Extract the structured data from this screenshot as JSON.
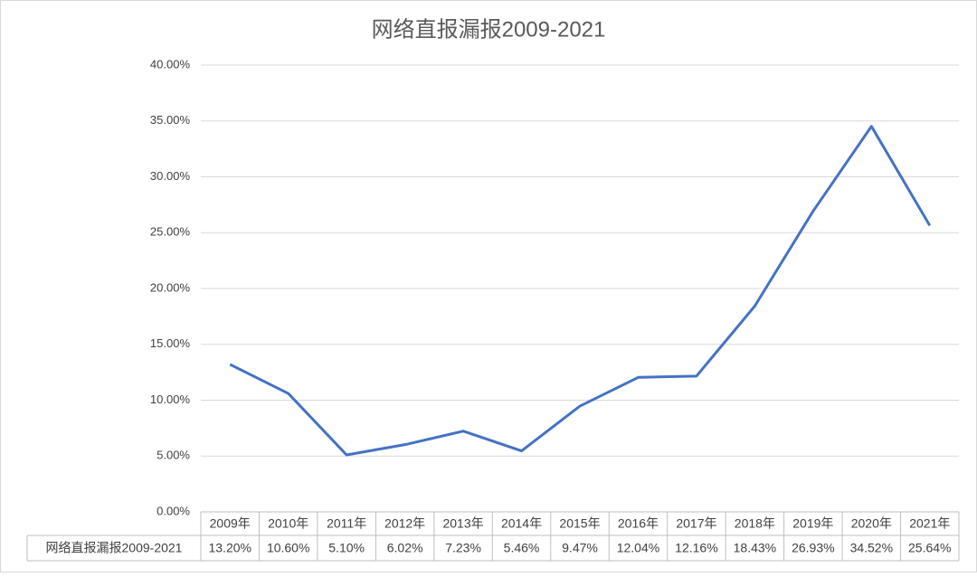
{
  "chart_data": {
    "type": "line",
    "title": "网络直报漏报2009-2021",
    "categories": [
      "2009年",
      "2010年",
      "2011年",
      "2012年",
      "2013年",
      "2014年",
      "2015年",
      "2016年",
      "2017年",
      "2018年",
      "2019年",
      "2020年",
      "2021年"
    ],
    "series": [
      {
        "name": "网络直报漏报2009-2021",
        "color": "#4472c4",
        "values": [
          13.2,
          10.6,
          5.1,
          6.02,
          7.23,
          5.46,
          9.47,
          12.04,
          12.16,
          18.43,
          26.93,
          34.52,
          25.64
        ],
        "value_labels": [
          "13.20%",
          "10.60%",
          "5.10%",
          "6.02%",
          "7.23%",
          "5.46%",
          "9.47%",
          "12.04%",
          "12.16%",
          "18.43%",
          "26.93%",
          "34.52%",
          "25.64%"
        ]
      }
    ],
    "ylim": [
      0,
      40
    ],
    "yticks": [
      {
        "value": 0,
        "label": "0.00%"
      },
      {
        "value": 5,
        "label": "5.00%"
      },
      {
        "value": 10,
        "label": "10.00%"
      },
      {
        "value": 15,
        "label": "15.00%"
      },
      {
        "value": 20,
        "label": "20.00%"
      },
      {
        "value": 25,
        "label": "25.00%"
      },
      {
        "value": 30,
        "label": "30.00%"
      },
      {
        "value": 35,
        "label": "35.00%"
      },
      {
        "value": 40,
        "label": "40.00%"
      }
    ],
    "grid": true
  }
}
